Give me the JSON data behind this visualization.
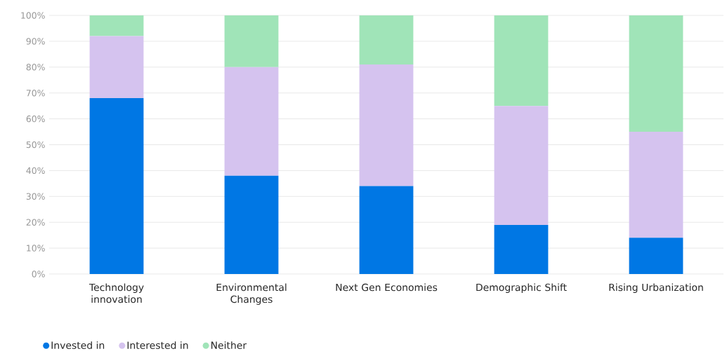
{
  "chart_data": {
    "type": "bar",
    "stacked": true,
    "categories": [
      "Technology innovation",
      "Environmental Changes",
      "Next Gen Economies",
      "Demographic Shift",
      "Rising Urbanization"
    ],
    "series": [
      {
        "name": "Invested in",
        "color": "#0077e4",
        "values": [
          68,
          38,
          34,
          19,
          14
        ]
      },
      {
        "name": "Interested in",
        "color": "#d5c3ef",
        "values": [
          24,
          42,
          47,
          46,
          41
        ]
      },
      {
        "name": "Neither",
        "color": "#a0e4b8",
        "values": [
          8,
          20,
          19,
          35,
          45
        ]
      }
    ],
    "ylim": [
      0,
      100
    ],
    "yticks": [
      {
        "value": 0,
        "label": "0%"
      },
      {
        "value": 10,
        "label": "10%"
      },
      {
        "value": 20,
        "label": "20%"
      },
      {
        "value": 30,
        "label": "30%"
      },
      {
        "value": 40,
        "label": "40%"
      },
      {
        "value": 50,
        "label": "50%"
      },
      {
        "value": 60,
        "label": "60%"
      },
      {
        "value": 70,
        "label": "70%"
      },
      {
        "value": 80,
        "label": "80%"
      },
      {
        "value": 90,
        "label": "90%"
      },
      {
        "value": 100,
        "label": "100%"
      }
    ],
    "grid": "y",
    "legend": "bottom left",
    "marker": "circle"
  }
}
